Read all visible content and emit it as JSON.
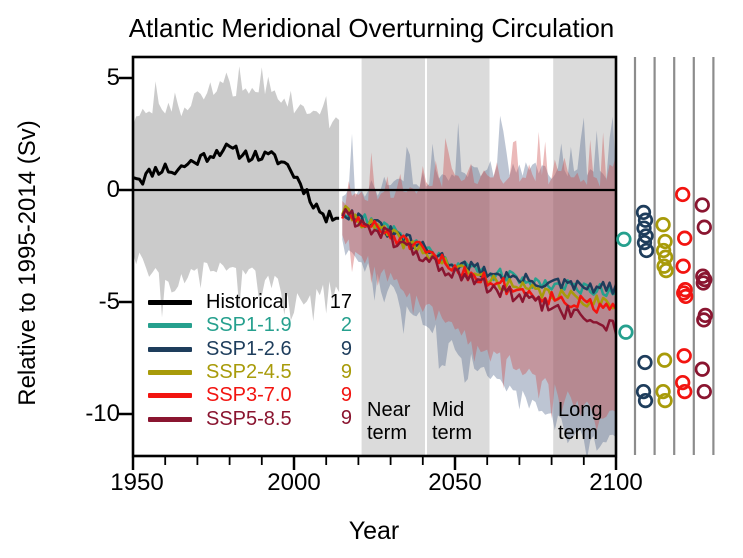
{
  "title": "Atlantic Meridional Overturning Circulation",
  "axes": {
    "x": {
      "label": "Year",
      "range": [
        1950,
        2100
      ],
      "major_ticks": [
        1950,
        2000,
        2050,
        2100
      ],
      "tick_labels": [
        "1950",
        "2000",
        "2050",
        "2100"
      ],
      "minor_ticks": [
        1960,
        1970,
        1980,
        1990,
        2010,
        2020,
        2030,
        2040,
        2060,
        2070,
        2080,
        2090
      ]
    },
    "y": {
      "label": "Relative to 1995-2014 (Sv)",
      "view_range": [
        -11.9,
        5.9
      ],
      "major_ticks": [
        5,
        0,
        -5,
        -10
      ],
      "tick_labels": [
        "5",
        "0",
        "-5",
        "-10"
      ]
    }
  },
  "legend": {
    "entries": [
      {
        "label": "Historical",
        "count": "17",
        "color": "#000000"
      },
      {
        "label": "SSP1-1.9",
        "count": "2",
        "color": "#26A08E"
      },
      {
        "label": "SSP1-2.6",
        "count": "9",
        "color": "#1E3D5C"
      },
      {
        "label": "SSP2-4.5",
        "count": "9",
        "color": "#A89B0A"
      },
      {
        "label": "SSP3-7.0",
        "count": "9",
        "color": "#F21410"
      },
      {
        "label": "SSP5-8.5",
        "count": "9",
        "color": "#8A1530"
      }
    ]
  },
  "period_bands": [
    {
      "label": "Near\nterm",
      "start": 2021,
      "end": 2040.7
    },
    {
      "label": "Mid\nterm",
      "start": 2041.3,
      "end": 2060.7
    },
    {
      "label": "Long\nterm",
      "start": 2080.5,
      "end": 2100
    }
  ],
  "period_band_color": "#DBDBDB",
  "chart_data": {
    "type": "line",
    "x_unit": "year",
    "y_unit": "Sv (relative to 1995-2014)",
    "zero_line": 0,
    "series": [
      {
        "name": "Historical",
        "color": "#000000",
        "n_models": 17,
        "years": [
          1950,
          2014
        ],
        "jitter": 0.28,
        "seed": 11,
        "trend": [
          [
            1950,
            0.7
          ],
          [
            1953,
            0.5
          ],
          [
            1956,
            0.85
          ],
          [
            1960,
            1.0
          ],
          [
            1963,
            0.8
          ],
          [
            1966,
            1.1
          ],
          [
            1970,
            1.35
          ],
          [
            1974,
            1.6
          ],
          [
            1978,
            1.85
          ],
          [
            1982,
            1.7
          ],
          [
            1986,
            1.55
          ],
          [
            1990,
            1.5
          ],
          [
            1994,
            1.45
          ],
          [
            1998,
            1.1
          ],
          [
            2002,
            0.3
          ],
          [
            2006,
            -0.55
          ],
          [
            2010,
            -1.3
          ],
          [
            2012,
            -1.15
          ],
          [
            2014,
            -1.0
          ]
        ]
      },
      {
        "name": "SSP1-1.9",
        "color": "#26A08E",
        "n_models": 2,
        "years": [
          2015,
          2100
        ],
        "jitter": 0.3,
        "seed": 21,
        "trend": [
          [
            2015,
            -0.9
          ],
          [
            2030,
            -1.8
          ],
          [
            2050,
            -3.3
          ],
          [
            2070,
            -4.0
          ],
          [
            2085,
            -4.3
          ],
          [
            2100,
            -4.5
          ]
        ]
      },
      {
        "name": "SSP1-2.6",
        "color": "#1E3D5C",
        "n_models": 9,
        "years": [
          2015,
          2100
        ],
        "jitter": 0.3,
        "seed": 31,
        "trend": [
          [
            2015,
            -0.9
          ],
          [
            2030,
            -1.9
          ],
          [
            2050,
            -3.3
          ],
          [
            2070,
            -4.0
          ],
          [
            2090,
            -4.35
          ],
          [
            2100,
            -4.4
          ]
        ]
      },
      {
        "name": "SSP2-4.5",
        "color": "#A89B0A",
        "n_models": 9,
        "years": [
          2015,
          2100
        ],
        "jitter": 0.3,
        "seed": 41,
        "trend": [
          [
            2015,
            -0.95
          ],
          [
            2030,
            -2.0
          ],
          [
            2050,
            -3.5
          ],
          [
            2070,
            -4.4
          ],
          [
            2090,
            -4.9
          ],
          [
            2100,
            -5.0
          ]
        ]
      },
      {
        "name": "SSP3-7.0",
        "color": "#F21410",
        "n_models": 9,
        "years": [
          2015,
          2100
        ],
        "jitter": 0.35,
        "seed": 51,
        "trend": [
          [
            2015,
            -1.1
          ],
          [
            2030,
            -2.0
          ],
          [
            2050,
            -3.5
          ],
          [
            2070,
            -4.5
          ],
          [
            2090,
            -5.1
          ],
          [
            2100,
            -5.4
          ]
        ]
      },
      {
        "name": "SSP5-8.5",
        "color": "#8A1530",
        "n_models": 9,
        "years": [
          2015,
          2100
        ],
        "jitter": 0.35,
        "seed": 61,
        "trend": [
          [
            2015,
            -1.0
          ],
          [
            2030,
            -2.15
          ],
          [
            2050,
            -3.8
          ],
          [
            2070,
            -4.8
          ],
          [
            2090,
            -5.7
          ],
          [
            2100,
            -6.1
          ]
        ]
      }
    ],
    "uncertainty_bands": [
      {
        "name": "Historical range",
        "fill": "rgba(140,140,140,0.45)",
        "years": [
          1950,
          2014
        ],
        "seed": 71,
        "spike_hi": 1.1,
        "spike_lo": 1.7,
        "hi": [
          [
            1950,
            3.0
          ],
          [
            1958,
            3.6
          ],
          [
            1964,
            3.4
          ],
          [
            1970,
            4.0
          ],
          [
            1978,
            4.6
          ],
          [
            1984,
            4.3
          ],
          [
            1990,
            4.4
          ],
          [
            1996,
            3.9
          ],
          [
            2002,
            3.6
          ],
          [
            2008,
            3.2
          ],
          [
            2014,
            2.8
          ]
        ],
        "lo": [
          [
            1950,
            -2.8
          ],
          [
            1956,
            -3.6
          ],
          [
            1962,
            -4.3
          ],
          [
            1968,
            -3.6
          ],
          [
            1974,
            -3.4
          ],
          [
            1980,
            -3.2
          ],
          [
            1986,
            -3.6
          ],
          [
            1992,
            -3.9
          ],
          [
            1998,
            -4.4
          ],
          [
            2004,
            -4.6
          ],
          [
            2010,
            -4.2
          ],
          [
            2014,
            -4.4
          ]
        ]
      },
      {
        "name": "SSP1-2.6 range",
        "fill": "rgba(90,110,145,0.40)",
        "years": [
          2015,
          2100
        ],
        "seed": 81,
        "spike_hi": 2.6,
        "spike_lo": 1.5,
        "hi": [
          [
            2015,
            -0.2
          ],
          [
            2030,
            0.1
          ],
          [
            2050,
            0.7
          ],
          [
            2070,
            0.9
          ],
          [
            2100,
            0.5
          ]
        ],
        "lo": [
          [
            2015,
            -2.3
          ],
          [
            2030,
            -4.4
          ],
          [
            2050,
            -7.0
          ],
          [
            2070,
            -9.0
          ],
          [
            2090,
            -11.0
          ],
          [
            2100,
            -11.2
          ]
        ]
      },
      {
        "name": "SSP3-7.0 range",
        "fill": "rgba(205,80,80,0.40)",
        "years": [
          2015,
          2100
        ],
        "seed": 91,
        "spike_hi": 2.0,
        "spike_lo": 1.2,
        "hi": [
          [
            2015,
            -0.4
          ],
          [
            2030,
            -0.1
          ],
          [
            2050,
            0.4
          ],
          [
            2070,
            0.6
          ],
          [
            2100,
            0.3
          ]
        ],
        "lo": [
          [
            2015,
            -2.2
          ],
          [
            2030,
            -3.9
          ],
          [
            2050,
            -6.2
          ],
          [
            2070,
            -7.9
          ],
          [
            2090,
            -9.6
          ],
          [
            2100,
            -10.0
          ]
        ]
      }
    ],
    "end_of_century_models": [
      {
        "scenario": "SSP1-1.9",
        "color": "#26A08E",
        "values_sv": [
          -2.2,
          -6.35
        ]
      },
      {
        "scenario": "SSP1-2.6",
        "color": "#1E3D5C",
        "values_sv": [
          -1.0,
          -1.35,
          -1.7,
          -2.05,
          -2.35,
          -2.7,
          -7.7,
          -9.0,
          -9.4
        ]
      },
      {
        "scenario": "SSP2-4.5",
        "color": "#A89B0A",
        "values_sv": [
          -1.55,
          -2.3,
          -2.7,
          -3.0,
          -3.4,
          -3.6,
          -7.6,
          -9.0,
          -9.4
        ]
      },
      {
        "scenario": "SSP3-7.0",
        "color": "#F21410",
        "values_sv": [
          -0.2,
          -2.15,
          -3.4,
          -4.45,
          -4.6,
          -4.75,
          -7.4,
          -8.6,
          -9.0
        ]
      },
      {
        "scenario": "SSP5-8.5",
        "color": "#8A1530",
        "values_sv": [
          -0.67,
          -1.66,
          -3.85,
          -4.0,
          -4.15,
          -5.6,
          -5.8,
          -8.0,
          -9.0
        ]
      }
    ]
  }
}
